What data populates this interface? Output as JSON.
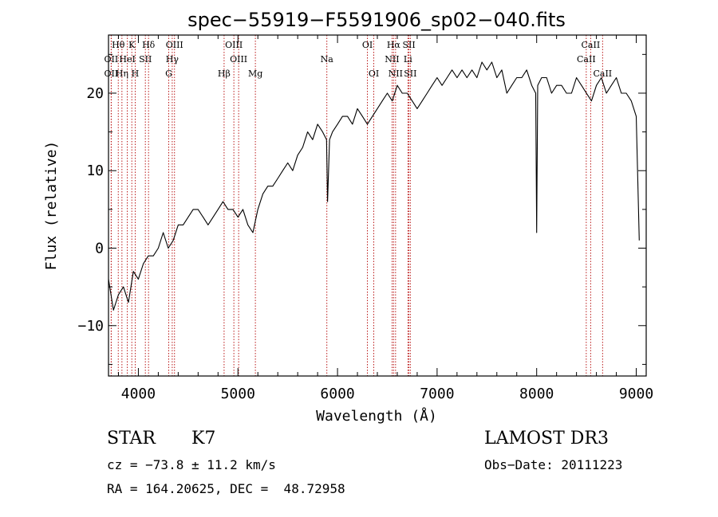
{
  "chart_data": {
    "type": "line",
    "title": "spec−55919−F5591906_sp02−040.fits",
    "xlabel": "Wavelength (Å)",
    "ylabel": "Flux (relative)",
    "xlim": [
      3700,
      9100
    ],
    "ylim": [
      -16.5,
      27.5
    ],
    "x_ticks": [
      4000,
      5000,
      6000,
      7000,
      8000,
      9000
    ],
    "y_ticks": [
      -10,
      0,
      10,
      20
    ],
    "y_tick_labels": [
      "−10",
      "0",
      "10",
      "20"
    ],
    "series": [
      {
        "name": "flux",
        "color": "#000000",
        "x": [
          3700,
          3750,
          3800,
          3850,
          3900,
          3950,
          4000,
          4050,
          4100,
          4150,
          4200,
          4250,
          4300,
          4350,
          4400,
          4450,
          4500,
          4550,
          4600,
          4650,
          4700,
          4750,
          4800,
          4850,
          4900,
          4950,
          5000,
          5050,
          5100,
          5150,
          5200,
          5250,
          5300,
          5350,
          5400,
          5450,
          5500,
          5550,
          5600,
          5650,
          5700,
          5750,
          5800,
          5850,
          5890,
          5900,
          5920,
          5950,
          6000,
          6050,
          6100,
          6150,
          6200,
          6250,
          6300,
          6350,
          6400,
          6450,
          6500,
          6550,
          6600,
          6650,
          6700,
          6750,
          6800,
          6850,
          6900,
          6950,
          7000,
          7050,
          7100,
          7150,
          7200,
          7250,
          7300,
          7350,
          7400,
          7450,
          7500,
          7550,
          7600,
          7650,
          7700,
          7750,
          7800,
          7850,
          7900,
          7950,
          7990,
          8000,
          8010,
          8050,
          8100,
          8150,
          8200,
          8250,
          8300,
          8350,
          8400,
          8450,
          8500,
          8550,
          8600,
          8650,
          8700,
          8750,
          8800,
          8850,
          8900,
          8950,
          9000,
          9030
        ],
        "y": [
          -4,
          -8,
          -6,
          -5,
          -7,
          -3,
          -4,
          -2,
          -1,
          -1,
          0,
          2,
          0,
          1,
          3,
          3,
          4,
          5,
          5,
          4,
          3,
          4,
          5,
          6,
          5,
          5,
          4,
          5,
          3,
          2,
          5,
          7,
          8,
          8,
          9,
          10,
          11,
          10,
          12,
          13,
          15,
          14,
          16,
          15,
          14,
          6,
          14,
          15,
          16,
          17,
          17,
          16,
          18,
          17,
          16,
          17,
          18,
          19,
          20,
          19,
          21,
          20,
          20,
          19,
          18,
          19,
          20,
          21,
          22,
          21,
          22,
          23,
          22,
          23,
          22,
          23,
          22,
          24,
          23,
          24,
          22,
          23,
          20,
          21,
          22,
          22,
          23,
          21,
          20,
          2,
          21,
          22,
          22,
          20,
          21,
          21,
          20,
          20,
          22,
          21,
          20,
          19,
          21,
          22,
          20,
          21,
          22,
          20,
          20,
          19,
          17,
          1
        ]
      }
    ],
    "lines": [
      {
        "label": "Hθ",
        "x": 3798,
        "row": 1
      },
      {
        "label": "K",
        "x": 3934,
        "row": 1
      },
      {
        "label": "Hδ",
        "x": 4102,
        "row": 1
      },
      {
        "label": "OIII",
        "x": 4363,
        "row": 1
      },
      {
        "label": "OIII",
        "x": 4959,
        "row": 1
      },
      {
        "label": "OI",
        "x": 6300,
        "row": 1
      },
      {
        "label": "Hα",
        "x": 6563,
        "row": 1
      },
      {
        "label": "SII",
        "x": 6717,
        "row": 1
      },
      {
        "label": "CaII",
        "x": 8542,
        "row": 1
      },
      {
        "label": "OII",
        "x": 3727,
        "row": 2
      },
      {
        "label": "HeI",
        "x": 3889,
        "row": 2
      },
      {
        "label": "SII",
        "x": 4070,
        "row": 2
      },
      {
        "label": "Hγ",
        "x": 4340,
        "row": 2
      },
      {
        "label": "OIII",
        "x": 5007,
        "row": 2
      },
      {
        "label": "Na",
        "x": 5893,
        "row": 2
      },
      {
        "label": "NII",
        "x": 6548,
        "row": 2
      },
      {
        "label": "Li",
        "x": 6707,
        "row": 2
      },
      {
        "label": "CaII",
        "x": 8498,
        "row": 2
      },
      {
        "label": "OII",
        "x": 3727,
        "row": 3
      },
      {
        "label": "Hη",
        "x": 3835,
        "row": 3
      },
      {
        "label": "H",
        "x": 3968,
        "row": 3
      },
      {
        "label": "G",
        "x": 4305,
        "row": 3
      },
      {
        "label": "Hβ",
        "x": 4861,
        "row": 3
      },
      {
        "label": "Mg",
        "x": 5175,
        "row": 3
      },
      {
        "label": "OI",
        "x": 6364,
        "row": 3
      },
      {
        "label": "NII",
        "x": 6583,
        "row": 3
      },
      {
        "label": "SII",
        "x": 6731,
        "row": 3
      },
      {
        "label": "CaII",
        "x": 8662,
        "row": 3
      }
    ]
  },
  "info": {
    "object_class": "STAR",
    "subclass": "K7",
    "redshift": "cz = −73.8 ± 11.2 km/s",
    "coords": "RA = 164.20625, DEC =  48.72958",
    "survey": "LAMOST DR3",
    "obs_date": "Obs−Date: 20111223"
  }
}
